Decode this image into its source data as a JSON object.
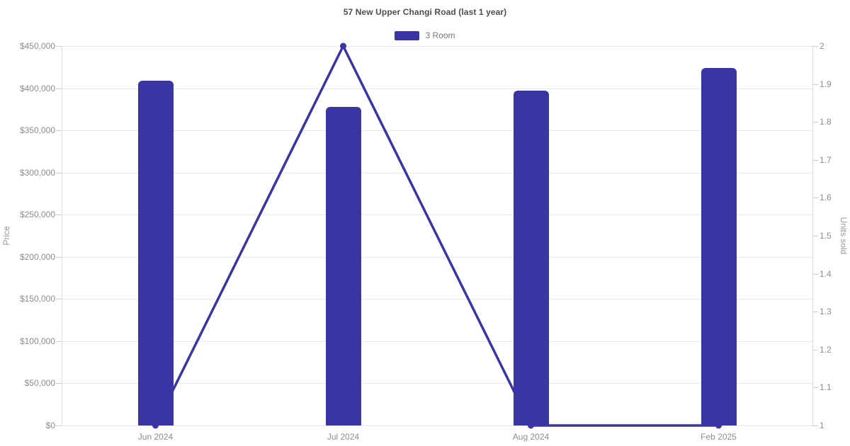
{
  "title": "57 New Upper Changi Road (last 1 year)",
  "legend": {
    "label": "3 Room",
    "color": "#3935A3"
  },
  "colors": {
    "bar": "#3935A3",
    "line": "#3935A3",
    "marker": "#3935A3",
    "gridline": "#e8e8e8",
    "axis_line": "#dddddd",
    "tick_dash": "#cccccc",
    "tick_label": "#8c8c8c",
    "title_text": "#4d4d4d",
    "axis_name": "#999999",
    "background": "#ffffff"
  },
  "chart_data": {
    "type": "bar",
    "subtype": "bar-with-line-overlay",
    "title": "57 New Upper Changi Road (last 1 year)",
    "categories": [
      "Jun 2024",
      "Jul 2024",
      "Aug 2024",
      "Feb 2025"
    ],
    "series": [
      {
        "name": "3 Room",
        "type": "bar",
        "axis": "left",
        "values": [
          409000,
          378000,
          397000,
          424000
        ]
      },
      {
        "name": "Units sold",
        "type": "line",
        "axis": "right",
        "values": [
          1,
          2,
          1,
          1
        ]
      }
    ],
    "left_axis": {
      "label": "Price",
      "min": 0,
      "max": 450000,
      "tick_step": 50000,
      "tick_values": [
        0,
        50000,
        100000,
        150000,
        200000,
        250000,
        300000,
        350000,
        400000,
        450000
      ],
      "tick_labels": [
        "$0",
        "$50,000",
        "$100,000",
        "$150,000",
        "$200,000",
        "$250,000",
        "$300,000",
        "$350,000",
        "$400,000",
        "$450,000"
      ]
    },
    "right_axis": {
      "label": "Units sold",
      "min": 1,
      "max": 2,
      "tick_step": 0.1,
      "tick_values": [
        1,
        1.1,
        1.2,
        1.3,
        1.4,
        1.5,
        1.6,
        1.7,
        1.8,
        1.9,
        2
      ],
      "tick_labels": [
        "1",
        "1.1",
        "1.2",
        "1.3",
        "1.4",
        "1.5",
        "1.6",
        "1.7",
        "1.8",
        "1.9",
        "2"
      ]
    },
    "grid": true,
    "legend_position": "top-center"
  }
}
